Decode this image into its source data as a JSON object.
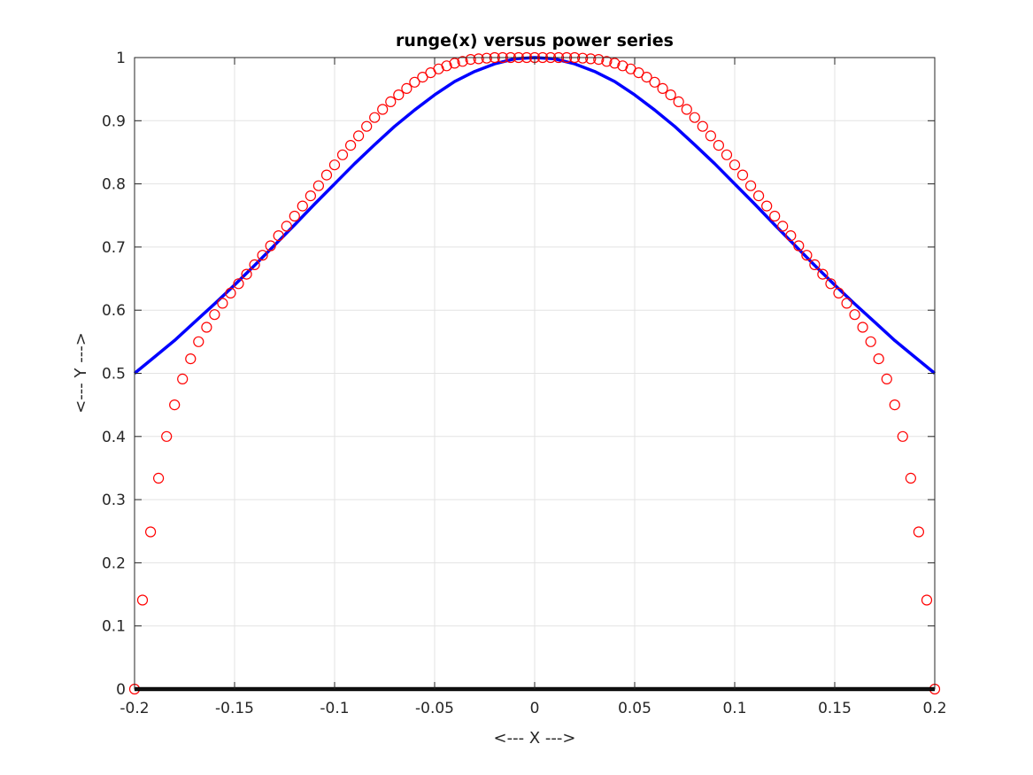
{
  "chart_data": {
    "type": "line",
    "title": "runge(x) versus power series",
    "xlabel": "<--- X --->",
    "ylabel": "<--- Y --->",
    "xlim": [
      -0.2,
      0.2
    ],
    "ylim": [
      0,
      1
    ],
    "grid": true,
    "legend": "none",
    "x_ticks": [
      -0.2,
      -0.15,
      -0.1,
      -0.05,
      0,
      0.05,
      0.1,
      0.15,
      0.2
    ],
    "x_tick_labels": [
      "-0.2",
      "-0.15",
      "-0.1",
      "-0.05",
      "0",
      "0.05",
      "0.1",
      "0.15",
      "0.2"
    ],
    "y_ticks": [
      0,
      0.1,
      0.2,
      0.3,
      0.4,
      0.5,
      0.6,
      0.7,
      0.8,
      0.9,
      1
    ],
    "y_tick_labels": [
      "0",
      "0.1",
      "0.2",
      "0.3",
      "0.4",
      "0.5",
      "0.6",
      "0.7",
      "0.8",
      "0.9",
      "1"
    ],
    "series": [
      {
        "style": "line",
        "color": "#0000ff",
        "x": [
          -0.2,
          -0.19,
          -0.18,
          -0.17,
          -0.16,
          -0.15,
          -0.14,
          -0.13,
          -0.12,
          -0.11,
          -0.1,
          -0.09,
          -0.08,
          -0.07,
          -0.06,
          -0.05,
          -0.04,
          -0.03,
          -0.02,
          -0.01,
          0,
          0.01,
          0.02,
          0.03,
          0.04,
          0.05,
          0.06,
          0.07,
          0.08,
          0.09,
          0.1,
          0.11,
          0.12,
          0.13,
          0.14,
          0.15,
          0.16,
          0.17,
          0.18,
          0.19,
          0.2
        ],
        "y": [
          0.5,
          0.526,
          0.552,
          0.581,
          0.61,
          0.64,
          0.671,
          0.703,
          0.735,
          0.768,
          0.8,
          0.832,
          0.862,
          0.891,
          0.917,
          0.941,
          0.962,
          0.978,
          0.99,
          0.998,
          1,
          0.998,
          0.99,
          0.978,
          0.962,
          0.941,
          0.917,
          0.891,
          0.862,
          0.832,
          0.8,
          0.768,
          0.735,
          0.703,
          0.671,
          0.64,
          0.61,
          0.581,
          0.552,
          0.526,
          0.5
        ]
      },
      {
        "style": "markers",
        "color": "#ff0000",
        "x": [
          -0.2,
          -0.196,
          -0.192,
          -0.188,
          -0.184,
          -0.18,
          -0.176,
          -0.172,
          -0.168,
          -0.164,
          -0.16,
          -0.156,
          -0.152,
          -0.148,
          -0.144,
          -0.14,
          -0.136,
          -0.132,
          -0.128,
          -0.124,
          -0.12,
          -0.116,
          -0.112,
          -0.108,
          -0.104,
          -0.1,
          -0.096,
          -0.092,
          -0.088,
          -0.084,
          -0.08,
          -0.076,
          -0.072,
          -0.068,
          -0.064,
          -0.06,
          -0.056,
          -0.052,
          -0.048,
          -0.044,
          -0.04,
          -0.036,
          -0.032,
          -0.028,
          -0.024,
          -0.02,
          -0.016,
          -0.012,
          -0.008,
          -0.004,
          0,
          0.004,
          0.008,
          0.012,
          0.016,
          0.02,
          0.024,
          0.028,
          0.032,
          0.036,
          0.04,
          0.044,
          0.048,
          0.052,
          0.056,
          0.06,
          0.064,
          0.068,
          0.072,
          0.076,
          0.08,
          0.084,
          0.088,
          0.092,
          0.096,
          0.1,
          0.104,
          0.108,
          0.112,
          0.116,
          0.12,
          0.124,
          0.128,
          0.132,
          0.136,
          0.14,
          0.144,
          0.148,
          0.152,
          0.156,
          0.16,
          0.164,
          0.168,
          0.172,
          0.176,
          0.18,
          0.184,
          0.188,
          0.192,
          0.196,
          0.2
        ],
        "y": [
          0,
          0.141,
          0.249,
          0.334,
          0.4,
          0.45,
          0.491,
          0.523,
          0.55,
          0.573,
          0.593,
          0.611,
          0.627,
          0.642,
          0.657,
          0.672,
          0.687,
          0.702,
          0.718,
          0.733,
          0.749,
          0.765,
          0.781,
          0.797,
          0.814,
          0.83,
          0.846,
          0.861,
          0.876,
          0.891,
          0.905,
          0.918,
          0.93,
          0.941,
          0.951,
          0.961,
          0.969,
          0.976,
          0.982,
          0.987,
          0.991,
          0.994,
          0.997,
          0.998,
          0.999,
          1,
          1,
          1,
          1,
          1,
          1,
          1,
          1,
          1,
          1,
          1,
          0.999,
          0.998,
          0.997,
          0.994,
          0.991,
          0.987,
          0.982,
          0.976,
          0.969,
          0.961,
          0.951,
          0.941,
          0.93,
          0.918,
          0.905,
          0.891,
          0.876,
          0.861,
          0.846,
          0.83,
          0.814,
          0.797,
          0.781,
          0.765,
          0.749,
          0.733,
          0.718,
          0.702,
          0.687,
          0.672,
          0.657,
          0.642,
          0.627,
          0.611,
          0.593,
          0.573,
          0.55,
          0.523,
          0.491,
          0.45,
          0.4,
          0.334,
          0.249,
          0.141,
          0
        ]
      },
      {
        "style": "line",
        "color": "#000000",
        "x": [
          -0.2,
          0.2
        ],
        "y": [
          0,
          0
        ]
      }
    ]
  }
}
